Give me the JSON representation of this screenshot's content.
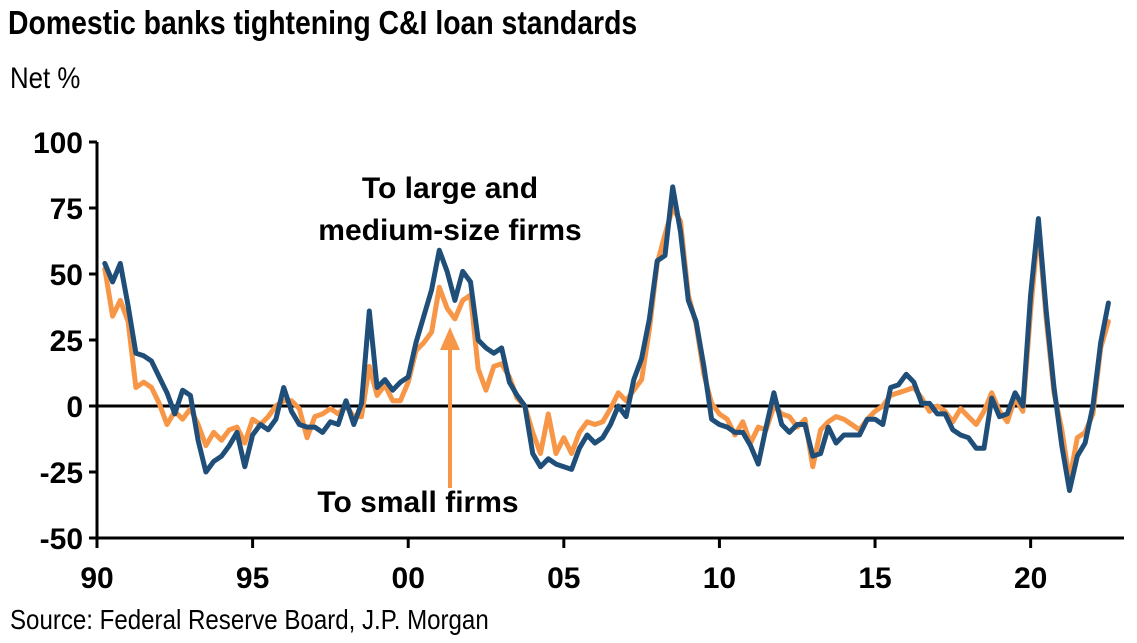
{
  "title": "Domestic banks tightening C&I loan standards",
  "unit_label": "Net %",
  "source": "Source: Federal Reserve Board, J.P. Morgan",
  "chart_data": {
    "type": "line",
    "ylim": [
      -50,
      100
    ],
    "yticks": [
      100,
      75,
      50,
      25,
      0,
      -25,
      -50
    ],
    "ytick_labels": [
      "100",
      "75",
      "50",
      "25",
      "0",
      "-25",
      "-50"
    ],
    "xlim": [
      1990,
      2023.0
    ],
    "xticks": [
      1990,
      1995,
      2000,
      2005,
      2010,
      2015,
      2020
    ],
    "xtick_labels": [
      "90",
      "95",
      "00",
      "05",
      "10",
      "15",
      "20"
    ],
    "grid": false,
    "colors": {
      "large": "#1f4e79",
      "small": "#f79646",
      "axis": "#000000"
    },
    "annotations": {
      "large_label_line1": "To large and",
      "large_label_line2": "medium-size firms",
      "small_label": "To small firms"
    },
    "series": [
      {
        "key": "large",
        "points": [
          [
            1990.25,
            54
          ],
          [
            1990.5,
            47
          ],
          [
            1990.75,
            54
          ],
          [
            1991.0,
            38
          ],
          [
            1991.25,
            20
          ],
          [
            1991.5,
            19
          ],
          [
            1991.75,
            17
          ],
          [
            1992.0,
            11
          ],
          [
            1992.25,
            5
          ],
          [
            1992.5,
            -3
          ],
          [
            1992.75,
            6
          ],
          [
            1993.0,
            4
          ],
          [
            1993.25,
            -13
          ],
          [
            1993.5,
            -25
          ],
          [
            1993.75,
            -21
          ],
          [
            1994.0,
            -19
          ],
          [
            1994.25,
            -15
          ],
          [
            1994.5,
            -10
          ],
          [
            1994.75,
            -23
          ],
          [
            1995.0,
            -11
          ],
          [
            1995.25,
            -7
          ],
          [
            1995.5,
            -9
          ],
          [
            1995.75,
            -5
          ],
          [
            1996.0,
            7
          ],
          [
            1996.25,
            -2
          ],
          [
            1996.5,
            -7
          ],
          [
            1996.75,
            -8
          ],
          [
            1997.0,
            -8
          ],
          [
            1997.25,
            -10
          ],
          [
            1997.5,
            -6
          ],
          [
            1997.75,
            -7
          ],
          [
            1998.0,
            2
          ],
          [
            1998.25,
            -7
          ],
          [
            1998.5,
            1
          ],
          [
            1998.75,
            36
          ],
          [
            1999.0,
            7
          ],
          [
            1999.25,
            10
          ],
          [
            1999.5,
            6
          ],
          [
            1999.75,
            9
          ],
          [
            2000.0,
            11
          ],
          [
            2000.25,
            24
          ],
          [
            2000.5,
            34
          ],
          [
            2000.75,
            44
          ],
          [
            2001.0,
            59
          ],
          [
            2001.25,
            51
          ],
          [
            2001.5,
            40
          ],
          [
            2001.75,
            51
          ],
          [
            2002.0,
            47
          ],
          [
            2002.25,
            25
          ],
          [
            2002.5,
            22
          ],
          [
            2002.75,
            20
          ],
          [
            2003.0,
            22
          ],
          [
            2003.25,
            9
          ],
          [
            2003.5,
            4
          ],
          [
            2003.75,
            0
          ],
          [
            2004.0,
            -18
          ],
          [
            2004.25,
            -23
          ],
          [
            2004.5,
            -20
          ],
          [
            2004.75,
            -22
          ],
          [
            2005.0,
            -23
          ],
          [
            2005.25,
            -24
          ],
          [
            2005.5,
            -16
          ],
          [
            2005.75,
            -11
          ],
          [
            2006.0,
            -14
          ],
          [
            2006.25,
            -12
          ],
          [
            2006.5,
            -7
          ],
          [
            2006.75,
            0
          ],
          [
            2007.0,
            -4
          ],
          [
            2007.25,
            10
          ],
          [
            2007.5,
            18
          ],
          [
            2007.75,
            33
          ],
          [
            2008.0,
            55
          ],
          [
            2008.25,
            57
          ],
          [
            2008.5,
            83
          ],
          [
            2008.75,
            66
          ],
          [
            2009.0,
            40
          ],
          [
            2009.25,
            32
          ],
          [
            2009.5,
            15
          ],
          [
            2009.75,
            -5
          ],
          [
            2010.0,
            -7
          ],
          [
            2010.25,
            -8
          ],
          [
            2010.5,
            -10
          ],
          [
            2010.75,
            -10
          ],
          [
            2011.0,
            -15
          ],
          [
            2011.25,
            -22
          ],
          [
            2011.5,
            -8
          ],
          [
            2011.75,
            5
          ],
          [
            2012.0,
            -7
          ],
          [
            2012.25,
            -10
          ],
          [
            2012.5,
            -7
          ],
          [
            2012.75,
            -7
          ],
          [
            2013.0,
            -19
          ],
          [
            2013.25,
            -18
          ],
          [
            2013.5,
            -8
          ],
          [
            2013.75,
            -14
          ],
          [
            2014.0,
            -11
          ],
          [
            2014.25,
            -11
          ],
          [
            2014.5,
            -11
          ],
          [
            2014.75,
            -5
          ],
          [
            2015.0,
            -5
          ],
          [
            2015.25,
            -7
          ],
          [
            2015.5,
            7
          ],
          [
            2015.75,
            8
          ],
          [
            2016.0,
            12
          ],
          [
            2016.25,
            9
          ],
          [
            2016.5,
            1
          ],
          [
            2016.75,
            1
          ],
          [
            2017.0,
            -3
          ],
          [
            2017.25,
            -3
          ],
          [
            2017.5,
            -9
          ],
          [
            2017.75,
            -11
          ],
          [
            2018.0,
            -12
          ],
          [
            2018.25,
            -16
          ],
          [
            2018.5,
            -16
          ],
          [
            2018.75,
            3
          ],
          [
            2019.0,
            -4
          ],
          [
            2019.25,
            -3
          ],
          [
            2019.5,
            5
          ],
          [
            2019.75,
            0
          ],
          [
            2020.0,
            42
          ],
          [
            2020.25,
            71
          ],
          [
            2020.5,
            36
          ],
          [
            2020.75,
            7
          ],
          [
            2021.0,
            -15
          ],
          [
            2021.25,
            -32
          ],
          [
            2021.5,
            -19
          ],
          [
            2021.75,
            -14
          ],
          [
            2022.0,
            0
          ],
          [
            2022.25,
            24
          ],
          [
            2022.5,
            39
          ]
        ]
      },
      {
        "key": "small",
        "points": [
          [
            1990.25,
            52
          ],
          [
            1990.5,
            34
          ],
          [
            1990.75,
            40
          ],
          [
            1991.0,
            32
          ],
          [
            1991.25,
            7
          ],
          [
            1991.5,
            9
          ],
          [
            1991.75,
            7
          ],
          [
            1992.0,
            1
          ],
          [
            1992.25,
            -7
          ],
          [
            1992.5,
            -2
          ],
          [
            1992.75,
            -5
          ],
          [
            1993.0,
            -1
          ],
          [
            1993.25,
            -7
          ],
          [
            1993.5,
            -15
          ],
          [
            1993.75,
            -10
          ],
          [
            1994.0,
            -13
          ],
          [
            1994.25,
            -9
          ],
          [
            1994.5,
            -8
          ],
          [
            1994.75,
            -14
          ],
          [
            1995.0,
            -5
          ],
          [
            1995.25,
            -7
          ],
          [
            1995.5,
            -4
          ],
          [
            1995.75,
            0
          ],
          [
            1996.0,
            2
          ],
          [
            1996.25,
            2
          ],
          [
            1996.5,
            -1
          ],
          [
            1996.75,
            -12
          ],
          [
            1997.0,
            -4
          ],
          [
            1997.25,
            -3
          ],
          [
            1997.5,
            -1
          ],
          [
            1997.75,
            -3
          ],
          [
            1998.0,
            0
          ],
          [
            1998.25,
            -4
          ],
          [
            1998.5,
            -4
          ],
          [
            1998.75,
            15
          ],
          [
            1999.0,
            4
          ],
          [
            1999.25,
            8
          ],
          [
            1999.5,
            2
          ],
          [
            1999.75,
            2
          ],
          [
            2000.0,
            9
          ],
          [
            2000.25,
            21
          ],
          [
            2000.5,
            24
          ],
          [
            2000.75,
            28
          ],
          [
            2001.0,
            45
          ],
          [
            2001.25,
            37
          ],
          [
            2001.5,
            33
          ],
          [
            2001.75,
            40
          ],
          [
            2002.0,
            42
          ],
          [
            2002.25,
            14
          ],
          [
            2002.5,
            6
          ],
          [
            2002.75,
            15
          ],
          [
            2003.0,
            16
          ],
          [
            2003.25,
            11
          ],
          [
            2003.5,
            3
          ],
          [
            2003.75,
            0
          ],
          [
            2004.0,
            -10
          ],
          [
            2004.25,
            -18
          ],
          [
            2004.5,
            -3
          ],
          [
            2004.75,
            -18
          ],
          [
            2005.0,
            -12
          ],
          [
            2005.25,
            -18
          ],
          [
            2005.5,
            -10
          ],
          [
            2005.75,
            -6
          ],
          [
            2006.0,
            -7
          ],
          [
            2006.25,
            -6
          ],
          [
            2006.5,
            -1
          ],
          [
            2006.75,
            5
          ],
          [
            2007.0,
            2
          ],
          [
            2007.25,
            6
          ],
          [
            2007.5,
            10
          ],
          [
            2007.75,
            29
          ],
          [
            2008.0,
            54
          ],
          [
            2008.25,
            65
          ],
          [
            2008.5,
            75
          ],
          [
            2008.75,
            70
          ],
          [
            2009.0,
            42
          ],
          [
            2009.25,
            31
          ],
          [
            2009.5,
            12
          ],
          [
            2009.75,
            1
          ],
          [
            2010.0,
            -3
          ],
          [
            2010.25,
            -5
          ],
          [
            2010.5,
            -11
          ],
          [
            2010.75,
            -6
          ],
          [
            2011.0,
            -14
          ],
          [
            2011.25,
            -8
          ],
          [
            2011.5,
            -9
          ],
          [
            2011.75,
            0
          ],
          [
            2012.0,
            -3
          ],
          [
            2012.25,
            -4
          ],
          [
            2012.5,
            -8
          ],
          [
            2012.75,
            -5
          ],
          [
            2013.0,
            -23
          ],
          [
            2013.25,
            -9
          ],
          [
            2013.5,
            -6
          ],
          [
            2013.75,
            -4
          ],
          [
            2014.0,
            -5
          ],
          [
            2014.25,
            -7
          ],
          [
            2014.5,
            -9
          ],
          [
            2014.75,
            -5
          ],
          [
            2015.0,
            -2
          ],
          [
            2015.25,
            0
          ],
          [
            2015.5,
            4
          ],
          [
            2015.75,
            5
          ],
          [
            2016.0,
            6
          ],
          [
            2016.25,
            7
          ],
          [
            2016.5,
            3
          ],
          [
            2016.75,
            -2
          ],
          [
            2017.0,
            0
          ],
          [
            2017.25,
            -2
          ],
          [
            2017.5,
            -6
          ],
          [
            2017.75,
            -1
          ],
          [
            2018.0,
            -4
          ],
          [
            2018.25,
            -7
          ],
          [
            2018.5,
            -2
          ],
          [
            2018.75,
            5
          ],
          [
            2019.0,
            -2
          ],
          [
            2019.25,
            -6
          ],
          [
            2019.5,
            3
          ],
          [
            2019.75,
            -2
          ],
          [
            2020.0,
            36
          ],
          [
            2020.25,
            68
          ],
          [
            2020.5,
            33
          ],
          [
            2020.75,
            5
          ],
          [
            2021.0,
            -9
          ],
          [
            2021.25,
            -28
          ],
          [
            2021.5,
            -12
          ],
          [
            2021.75,
            -10
          ],
          [
            2022.0,
            -3
          ],
          [
            2022.25,
            22
          ],
          [
            2022.5,
            32
          ]
        ]
      }
    ]
  }
}
